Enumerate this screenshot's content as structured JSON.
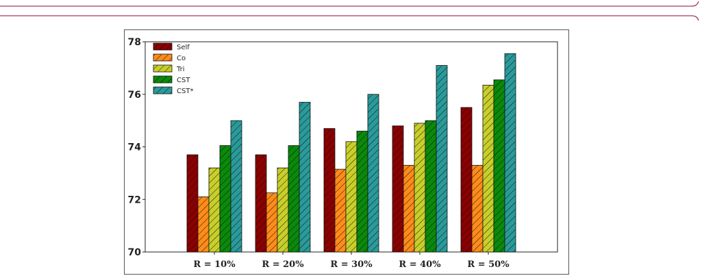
{
  "colors": {
    "Self": "#8b0000",
    "Co": "#ff8c1a",
    "Tri": "#c8cf2a",
    "CST": "#0a8a0a",
    "CST*": "#2a9a9a"
  },
  "chart_data": {
    "type": "bar",
    "title": "",
    "xlabel": "",
    "ylabel": "",
    "ylim": [
      70,
      78
    ],
    "yticks": [
      70,
      72,
      74,
      76,
      78
    ],
    "grid": false,
    "legend_position": "top-left",
    "categories": [
      "R = 10%",
      "R = 20%",
      "R = 30%",
      "R = 40%",
      "R = 50%"
    ],
    "series": [
      {
        "name": "Self",
        "values": [
          73.7,
          73.7,
          74.7,
          74.8,
          75.5
        ]
      },
      {
        "name": "Co",
        "values": [
          72.1,
          72.25,
          73.15,
          73.3,
          73.3
        ]
      },
      {
        "name": "Tri",
        "values": [
          73.2,
          73.2,
          74.2,
          74.9,
          76.35
        ]
      },
      {
        "name": "CST",
        "values": [
          74.05,
          74.05,
          74.6,
          75.0,
          76.55
        ]
      },
      {
        "name": "CST*",
        "values": [
          75.0,
          75.7,
          76.0,
          77.1,
          77.55
        ]
      }
    ]
  }
}
